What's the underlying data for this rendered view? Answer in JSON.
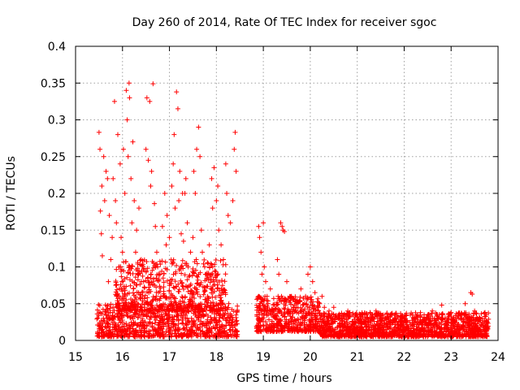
{
  "chart_data": {
    "type": "scatter",
    "title": "Day 260 of 2014, Rate Of TEC Index for receiver sgoc",
    "xlabel": "GPS time / hours",
    "ylabel": "ROTI / TECUs",
    "xlim": [
      15,
      24
    ],
    "ylim": [
      0,
      0.4
    ],
    "grid": true,
    "x_ticks": [
      "15",
      "16",
      "17",
      "18",
      "19",
      "20",
      "21",
      "22",
      "23",
      "24"
    ],
    "y_ticks": [
      "0",
      "0.05",
      "0.1",
      "0.15",
      "0.2",
      "0.25",
      "0.3",
      "0.35",
      "0.4"
    ],
    "marker": "plus",
    "color": "#ff0000",
    "series": [
      {
        "name": "ROTI",
        "points": [
          [
            15.5,
            0.283
          ],
          [
            15.52,
            0.26
          ],
          [
            15.53,
            0.176
          ],
          [
            15.55,
            0.145
          ],
          [
            15.56,
            0.21
          ],
          [
            15.57,
            0.115
          ],
          [
            15.6,
            0.25
          ],
          [
            15.62,
            0.19
          ],
          [
            15.65,
            0.23
          ],
          [
            15.68,
            0.22
          ],
          [
            15.7,
            0.08
          ],
          [
            15.72,
            0.17
          ],
          [
            15.75,
            0.11
          ],
          [
            15.78,
            0.14
          ],
          [
            15.8,
            0.22
          ],
          [
            15.83,
            0.325
          ],
          [
            15.85,
            0.19
          ],
          [
            15.87,
            0.16
          ],
          [
            15.9,
            0.28
          ],
          [
            15.93,
            0.1
          ],
          [
            15.95,
            0.24
          ],
          [
            15.97,
            0.14
          ],
          [
            16.0,
            0.12
          ],
          [
            16.02,
            0.26
          ],
          [
            16.05,
            0.2
          ],
          [
            16.08,
            0.34
          ],
          [
            16.1,
            0.3
          ],
          [
            16.12,
            0.25
          ],
          [
            16.14,
            0.35
          ],
          [
            16.15,
            0.33
          ],
          [
            16.18,
            0.22
          ],
          [
            16.2,
            0.16
          ],
          [
            16.22,
            0.27
          ],
          [
            16.25,
            0.19
          ],
          [
            16.28,
            0.12
          ],
          [
            16.3,
            0.15
          ],
          [
            16.33,
            0.09
          ],
          [
            16.35,
            0.18
          ],
          [
            16.4,
            0.11
          ],
          [
            16.45,
            0.08
          ],
          [
            16.5,
            0.26
          ],
          [
            16.52,
            0.33
          ],
          [
            16.55,
            0.245
          ],
          [
            16.58,
            0.325
          ],
          [
            16.6,
            0.21
          ],
          [
            16.62,
            0.23
          ],
          [
            16.65,
            0.349
          ],
          [
            16.68,
            0.186
          ],
          [
            16.7,
            0.155
          ],
          [
            16.73,
            0.12
          ],
          [
            16.75,
            0.1
          ],
          [
            16.8,
            0.09
          ],
          [
            16.85,
            0.155
          ],
          [
            16.9,
            0.2
          ],
          [
            16.93,
            0.13
          ],
          [
            16.95,
            0.17
          ],
          [
            17.0,
            0.14
          ],
          [
            17.05,
            0.21
          ],
          [
            17.08,
            0.24
          ],
          [
            17.1,
            0.28
          ],
          [
            17.12,
            0.18
          ],
          [
            17.15,
            0.338
          ],
          [
            17.18,
            0.315
          ],
          [
            17.2,
            0.19
          ],
          [
            17.22,
            0.23
          ],
          [
            17.25,
            0.145
          ],
          [
            17.28,
            0.2
          ],
          [
            17.3,
            0.135
          ],
          [
            17.33,
            0.2
          ],
          [
            17.35,
            0.22
          ],
          [
            17.38,
            0.16
          ],
          [
            17.4,
            0.1
          ],
          [
            17.45,
            0.12
          ],
          [
            17.5,
            0.14
          ],
          [
            17.52,
            0.23
          ],
          [
            17.55,
            0.2
          ],
          [
            17.58,
            0.26
          ],
          [
            17.62,
            0.29
          ],
          [
            17.65,
            0.25
          ],
          [
            17.68,
            0.15
          ],
          [
            17.7,
            0.12
          ],
          [
            17.75,
            0.1
          ],
          [
            17.8,
            0.085
          ],
          [
            17.85,
            0.13
          ],
          [
            17.9,
            0.22
          ],
          [
            17.92,
            0.18
          ],
          [
            17.95,
            0.235
          ],
          [
            18.0,
            0.19
          ],
          [
            18.03,
            0.21
          ],
          [
            18.05,
            0.15
          ],
          [
            18.1,
            0.13
          ],
          [
            18.15,
            0.11
          ],
          [
            18.2,
            0.24
          ],
          [
            18.22,
            0.2
          ],
          [
            18.25,
            0.17
          ],
          [
            18.3,
            0.16
          ],
          [
            18.35,
            0.19
          ],
          [
            18.38,
            0.26
          ],
          [
            18.4,
            0.283
          ],
          [
            18.42,
            0.23
          ],
          [
            18.9,
            0.155
          ],
          [
            18.92,
            0.14
          ],
          [
            18.95,
            0.12
          ],
          [
            18.97,
            0.09
          ],
          [
            19.0,
            0.16
          ],
          [
            19.02,
            0.1
          ],
          [
            19.05,
            0.08
          ],
          [
            19.08,
            0.06
          ],
          [
            19.1,
            0.05
          ],
          [
            19.15,
            0.07
          ],
          [
            19.3,
            0.11
          ],
          [
            19.33,
            0.09
          ],
          [
            19.37,
            0.16
          ],
          [
            19.4,
            0.155
          ],
          [
            19.42,
            0.15
          ],
          [
            19.45,
            0.148
          ],
          [
            19.5,
            0.08
          ],
          [
            19.6,
            0.06
          ],
          [
            19.7,
            0.05
          ],
          [
            19.8,
            0.07
          ],
          [
            19.9,
            0.06
          ],
          [
            19.95,
            0.09
          ],
          [
            20.0,
            0.1
          ],
          [
            20.05,
            0.08
          ],
          [
            20.1,
            0.065
          ],
          [
            20.2,
            0.05
          ],
          [
            20.25,
            0.06
          ],
          [
            20.3,
            0.045
          ],
          [
            20.4,
            0.04
          ],
          [
            20.5,
            0.045
          ],
          [
            20.6,
            0.03
          ],
          [
            20.8,
            0.04
          ],
          [
            21.0,
            0.032
          ],
          [
            21.2,
            0.035
          ],
          [
            21.4,
            0.04
          ],
          [
            21.6,
            0.03
          ],
          [
            21.8,
            0.035
          ],
          [
            22.0,
            0.03
          ],
          [
            22.2,
            0.03
          ],
          [
            22.4,
            0.025
          ],
          [
            22.6,
            0.04
          ],
          [
            22.8,
            0.048
          ],
          [
            23.0,
            0.038
          ],
          [
            23.2,
            0.03
          ],
          [
            23.3,
            0.05
          ],
          [
            23.42,
            0.065
          ],
          [
            23.45,
            0.063
          ],
          [
            23.5,
            0.04
          ],
          [
            23.6,
            0.03
          ],
          [
            23.75,
            0.035
          ]
        ]
      }
    ],
    "dense_bands": [
      {
        "x0": 15.45,
        "x1": 18.45,
        "ymin": 0.005,
        "ymax": 0.05,
        "count": 900
      },
      {
        "x0": 15.85,
        "x1": 18.2,
        "ymin": 0.04,
        "ymax": 0.11,
        "count": 600
      },
      {
        "x0": 18.85,
        "x1": 20.2,
        "ymin": 0.012,
        "ymax": 0.06,
        "count": 500
      },
      {
        "x0": 20.2,
        "x1": 23.8,
        "ymin": 0.005,
        "ymax": 0.038,
        "count": 1500
      }
    ]
  }
}
